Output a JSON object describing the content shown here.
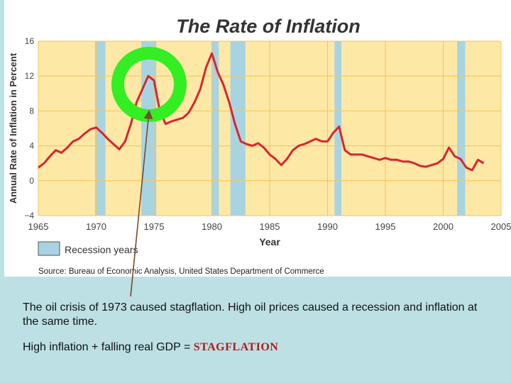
{
  "chart_data": {
    "type": "line",
    "title": "The Rate of Inflation",
    "xlabel": "Year",
    "ylabel": "Annual Rate of Inflation in Percent",
    "xlim": [
      1965,
      2005
    ],
    "ylim": [
      -4,
      16
    ],
    "x_ticks": [
      "1965",
      "1970",
      "1975",
      "1980",
      "1985",
      "1990",
      "1995",
      "2000",
      "2005"
    ],
    "y_ticks": [
      "16",
      "12",
      "8",
      "4",
      "0",
      "−4"
    ],
    "legend_label": "Recession years",
    "source": "Source: Bureau of Economic Analysis, United States Department of Commerce",
    "recessions": [
      [
        1969.9,
        1970.8
      ],
      [
        1973.9,
        1975.2
      ],
      [
        1980.0,
        1980.6
      ],
      [
        1981.6,
        1982.9
      ],
      [
        1990.6,
        1991.2
      ],
      [
        2001.2,
        2001.9
      ]
    ],
    "series": [
      {
        "x": [
          1965,
          1965.5,
          1966,
          1966.5,
          1967,
          1967.5,
          1968,
          1968.5,
          1969,
          1969.5,
          1970,
          1970.5,
          1971,
          1971.5,
          1972,
          1972.5,
          1973,
          1973.5,
          1974,
          1974.5,
          1975,
          1975.5,
          1976,
          1976.5,
          1977,
          1977.5,
          1978,
          1978.5,
          1979,
          1979.5,
          1980,
          1980.5,
          1981,
          1981.5,
          1982,
          1982.5,
          1983,
          1983.5,
          1984,
          1984.5,
          1985,
          1985.5,
          1986,
          1986.5,
          1987,
          1987.5,
          1988,
          1988.5,
          1989,
          1989.5,
          1990,
          1990.5,
          1991,
          1991.5,
          1992,
          1992.5,
          1993,
          1993.5,
          1994,
          1994.5,
          1995,
          1995.5,
          1996,
          1996.5,
          1997,
          1997.5,
          1998,
          1998.5,
          1999,
          1999.5,
          2000,
          2000.5,
          2001,
          2001.5,
          2002,
          2002.5,
          2003,
          2003.5
        ],
        "values": [
          1.5,
          2,
          2.8,
          3.5,
          3.2,
          3.8,
          4.5,
          4.8,
          5.4,
          5.9,
          6.1,
          5.5,
          4.8,
          4.2,
          3.6,
          4.5,
          6.5,
          9,
          10.5,
          12,
          11.5,
          8,
          6.5,
          6.8,
          7,
          7.2,
          7.8,
          9,
          10.5,
          13,
          14.6,
          12.5,
          11,
          9,
          6.5,
          4.5,
          4.2,
          4,
          4.3,
          3.8,
          3,
          2.5,
          1.8,
          2.5,
          3.5,
          4,
          4.2,
          4.5,
          4.8,
          4.5,
          4.5,
          5.5,
          6.2,
          3.5,
          3,
          3,
          3,
          2.8,
          2.6,
          2.4,
          2.6,
          2.4,
          2.4,
          2.2,
          2.2,
          2,
          1.7,
          1.6,
          1.8,
          2,
          2.5,
          3.8,
          2.8,
          2.5,
          1.5,
          1.2,
          2.4,
          2
        ]
      }
    ]
  },
  "annotation": {
    "caption_line1": "The oil crisis of 1973 caused stagflation. High oil prices caused a recession and inflation at the same time.",
    "caption_line2_prefix": "High inflation + falling real GDP = ",
    "caption_line2_keyword": "STAGFLATION"
  },
  "colors": {
    "plot_bg": "#fde8a6",
    "recession_fill": "#a8d4e2",
    "line": "#d8262e",
    "circle": "#33ee22",
    "arrow": "#7a4a2a",
    "page_bg": "#bde0e4"
  }
}
